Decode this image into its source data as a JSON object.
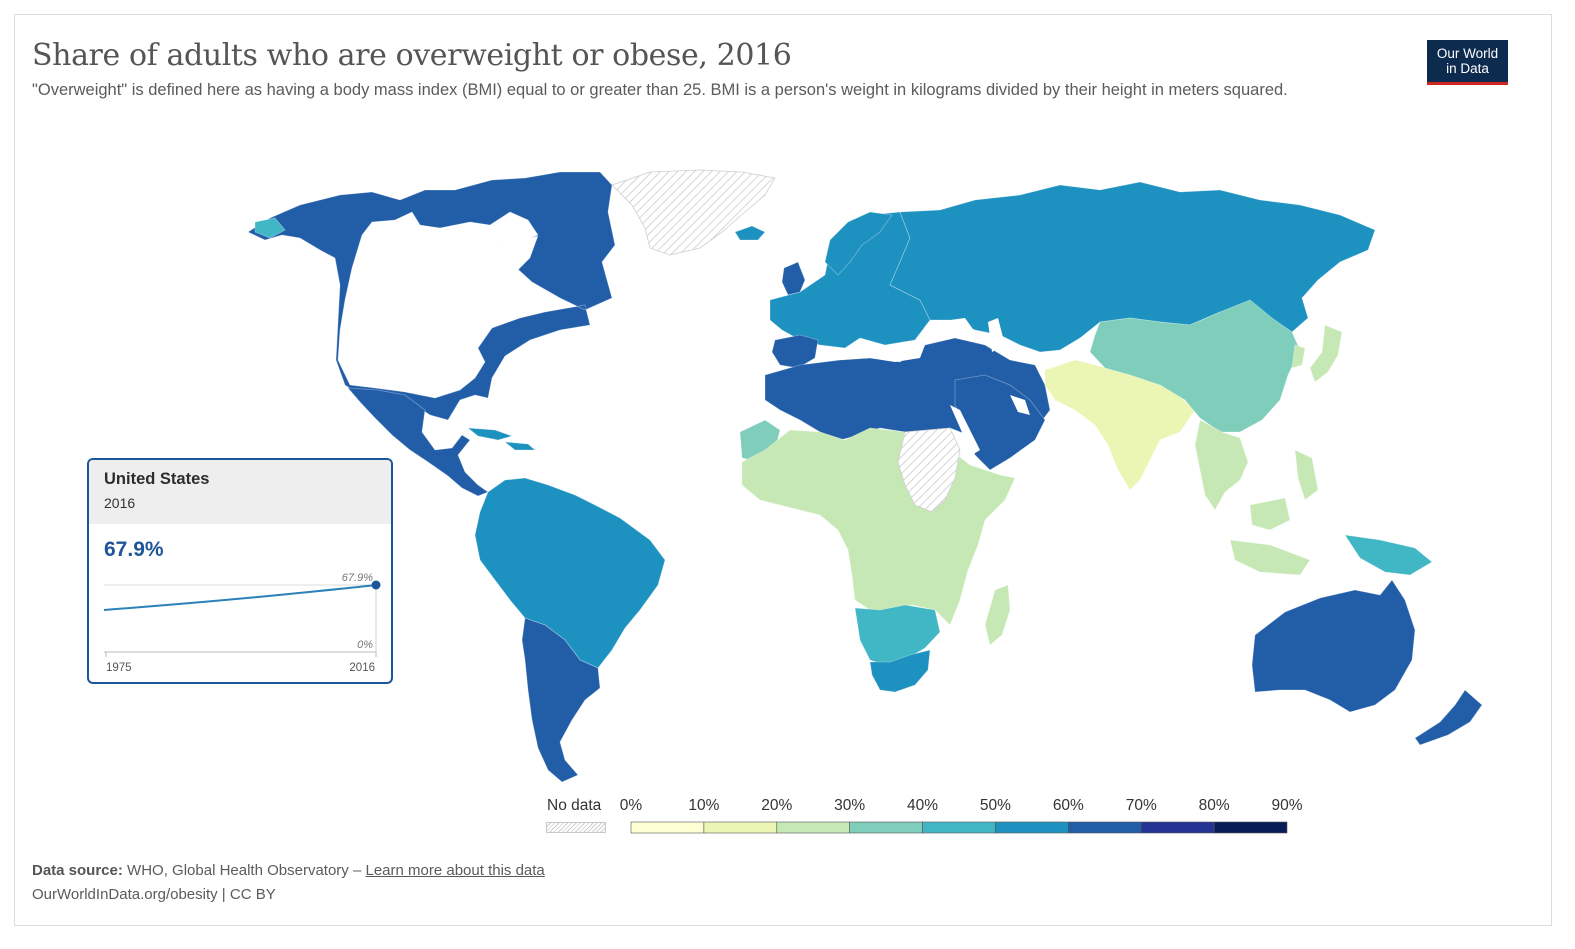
{
  "header": {
    "title": "Share of adults who are overweight or obese, 2016",
    "subtitle": "\"Overweight\" is defined here as having a body mass index (BMI) equal to or greater than 25. BMI is a person's weight in kilograms divided by their height in meters squared."
  },
  "logo": {
    "line1": "Our World",
    "line2": "in Data",
    "bg_color": "#0d2a4f",
    "accent_color": "#ce261e"
  },
  "tooltip": {
    "country": "United States",
    "year": "2016",
    "value": "67.9%",
    "end_label": "67.9%",
    "zero_label": "0%",
    "x_start": "1975",
    "x_end": "2016"
  },
  "legend": {
    "no_data_label": "No data",
    "ticks": [
      "0%",
      "10%",
      "20%",
      "30%",
      "40%",
      "50%",
      "60%",
      "70%",
      "80%",
      "90%"
    ],
    "colors": [
      "#fefed4",
      "#ebf6b5",
      "#c6e8b4",
      "#7fcdbb",
      "#41b6c4",
      "#1d91c0",
      "#225ea8",
      "#253494",
      "#081d58"
    ]
  },
  "footer": {
    "source_label": "Data source:",
    "source_text": "WHO, Global Health Observatory –",
    "learn_more": "Learn more about this data",
    "url": "OurWorldInData.org/obesity | CC BY"
  },
  "chart_data": {
    "type": "choropleth",
    "title": "Share of adults who are overweight or obese, 2016",
    "year": 2016,
    "unit": "%",
    "scale_bins": [
      0,
      10,
      20,
      30,
      40,
      50,
      60,
      70,
      80,
      90
    ],
    "selected": {
      "country": "United States",
      "value": 67.9
    },
    "series": [
      {
        "name": "United States",
        "x": [
          1975,
          2016
        ],
        "values": [
          null,
          67.9
        ]
      }
    ],
    "regions": [
      {
        "name": "North America",
        "bin": "60-70%"
      },
      {
        "name": "Greenland",
        "bin": "No data"
      },
      {
        "name": "Mexico & Central America",
        "bin": "60-70%"
      },
      {
        "name": "Caribbean",
        "bin": "50-60%"
      },
      {
        "name": "South America North",
        "bin": "50-60%"
      },
      {
        "name": "Southern Cone",
        "bin": "60-70%"
      },
      {
        "name": "Western Europe",
        "bin": "50-60%"
      },
      {
        "name": "Russia & Central Asia",
        "bin": "50-60%"
      },
      {
        "name": "North Africa & Middle East",
        "bin": "60-70%"
      },
      {
        "name": "West Africa",
        "bin": "30-40%"
      },
      {
        "name": "Sahel",
        "bin": "20-30%"
      },
      {
        "name": "Sudan",
        "bin": "No data"
      },
      {
        "name": "Central & East Africa",
        "bin": "20-30%"
      },
      {
        "name": "Southern Africa",
        "bin": "40-50%"
      },
      {
        "name": "South Africa",
        "bin": "50-60%"
      },
      {
        "name": "Madagascar",
        "bin": "20-30%"
      },
      {
        "name": "South Asia",
        "bin": "10-20%"
      },
      {
        "name": "China & East Asia",
        "bin": "30-40%"
      },
      {
        "name": "Japan & Korea",
        "bin": "20-30%"
      },
      {
        "name": "Southeast Asia",
        "bin": "20-30%"
      },
      {
        "name": "Papua New Guinea",
        "bin": "40-50%"
      },
      {
        "name": "Australia",
        "bin": "60-70%"
      },
      {
        "name": "New Zealand",
        "bin": "60-70%"
      }
    ]
  }
}
